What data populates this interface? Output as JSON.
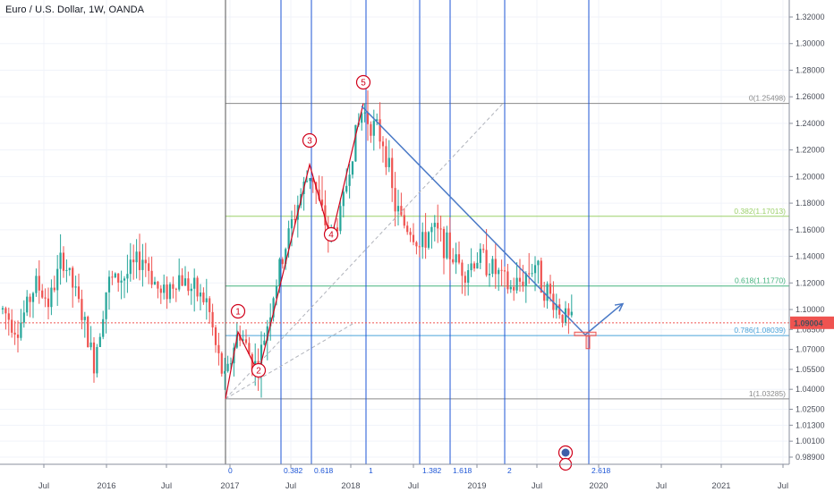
{
  "header": {
    "title": "Euro / U.S. Dollar, 1W, OANDA"
  },
  "colors": {
    "up": "#26a69a",
    "down": "#ef5350",
    "trend": "#4a79c6",
    "timezone": "#1e56d6",
    "wave": "#d0021b",
    "fib_0": "#8a8a8a",
    "fib_382": "#9cd06a",
    "fib_618": "#45b37e",
    "fib_786": "#4aa3d9",
    "fib_1": "#8a8a8a",
    "price_tag": "#ef5350"
  },
  "chart_data": {
    "type": "candlestick",
    "symbol": "EURUSD",
    "timeframe": "1W",
    "y_axis": {
      "labels": [
        "1.32000",
        "1.30000",
        "1.28000",
        "1.26000",
        "1.24000",
        "1.22000",
        "1.20000",
        "1.18000",
        "1.16000",
        "1.14000",
        "1.12000",
        "1.10000",
        "1.08500",
        "1.07000",
        "1.05500",
        "1.04000",
        "1.02500",
        "1.01300",
        "1.00100",
        "0.98900"
      ]
    },
    "x_axis": {
      "labels": [
        "Jul",
        "2016",
        "Jul",
        "2017",
        "Jul",
        "2018",
        "Jul",
        "2019",
        "Jul",
        "2020",
        "Jul",
        "2021",
        "Jul"
      ]
    },
    "current_price": "1.09004",
    "fibonacci_retracement": [
      {
        "label": "0(1.25498)",
        "level": 1.25498,
        "color_key": "fib_0"
      },
      {
        "label": "0.382(1.17013)",
        "level": 1.17013,
        "color_key": "fib_382"
      },
      {
        "label": "0.618(1.11770)",
        "level": 1.1177,
        "color_key": "fib_618"
      },
      {
        "label": "0.786(1.08039)",
        "level": 1.08039,
        "color_key": "fib_786"
      },
      {
        "label": "1(1.03285)",
        "level": 1.03285,
        "color_key": "fib_1"
      }
    ],
    "fibonacci_time_zones": [
      "0",
      "0.382",
      "0.618",
      "1",
      "1.382",
      "1.618",
      "2",
      "2.618"
    ],
    "elliott_waves": [
      {
        "label": "1",
        "price": 1.083
      },
      {
        "label": "2",
        "price": 1.052
      },
      {
        "label": "3",
        "price": 1.209
      },
      {
        "label": "4",
        "price": 1.153
      },
      {
        "label": "5",
        "price": 1.255
      }
    ],
    "candles": []
  }
}
